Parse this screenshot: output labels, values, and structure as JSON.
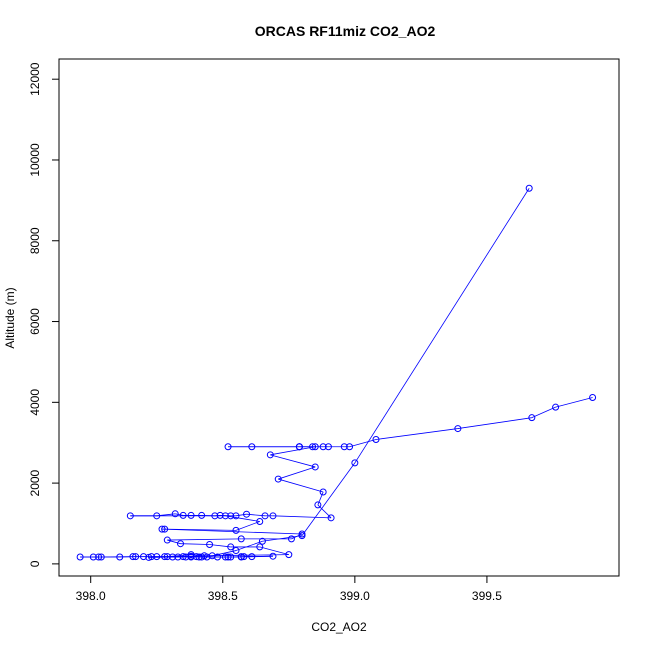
{
  "chart_data": {
    "type": "scatter",
    "title": "ORCAS RF11miz CO2_AO2",
    "xlabel": "CO2_AO2",
    "ylabel": "Altitude (m)",
    "xlim": [
      397.88,
      400.0
    ],
    "ylim": [
      -300,
      12500
    ],
    "xticks": [
      398.0,
      398.5,
      399.0,
      399.5
    ],
    "xtick_labels": [
      "398.0",
      "398.5",
      "399.0",
      "399.5"
    ],
    "yticks": [
      0,
      2000,
      4000,
      6000,
      8000,
      10000,
      12000
    ],
    "ytick_labels": [
      "0",
      "2000",
      "4000",
      "6000",
      "8000",
      "10000",
      "12000"
    ],
    "grid": false,
    "series": [
      {
        "color": "#0000ff",
        "marker": "open-circle",
        "line": true,
        "points": [
          [
            399.9,
            4120
          ],
          [
            399.76,
            3880
          ],
          [
            399.67,
            3620
          ],
          [
            399.39,
            3350
          ],
          [
            399.08,
            3080
          ],
          [
            398.98,
            2900
          ],
          [
            398.96,
            2900
          ],
          [
            398.9,
            2900
          ],
          [
            398.88,
            2900
          ],
          [
            398.84,
            2900
          ],
          [
            398.79,
            2900
          ],
          [
            398.79,
            2900
          ],
          [
            398.61,
            2900
          ],
          [
            398.52,
            2900
          ],
          [
            398.79,
            2900
          ],
          [
            398.85,
            2900
          ],
          [
            398.68,
            2700
          ],
          [
            398.85,
            2400
          ],
          [
            398.71,
            2100
          ],
          [
            398.88,
            1780
          ],
          [
            398.86,
            1460
          ],
          [
            398.91,
            1140
          ],
          [
            398.69,
            1190
          ],
          [
            398.66,
            1190
          ],
          [
            398.59,
            1230
          ],
          [
            398.55,
            1190
          ],
          [
            398.53,
            1190
          ],
          [
            398.49,
            1200
          ],
          [
            398.47,
            1190
          ],
          [
            398.42,
            1200
          ],
          [
            398.38,
            1200
          ],
          [
            398.35,
            1200
          ],
          [
            398.32,
            1240
          ],
          [
            398.25,
            1190
          ],
          [
            398.15,
            1190
          ],
          [
            398.51,
            1190
          ],
          [
            398.64,
            1050
          ],
          [
            398.55,
            830
          ],
          [
            398.28,
            860
          ],
          [
            398.27,
            860
          ],
          [
            398.8,
            740
          ],
          [
            398.76,
            620
          ],
          [
            398.57,
            620
          ],
          [
            398.29,
            590
          ],
          [
            398.34,
            500
          ],
          [
            398.45,
            480
          ],
          [
            398.53,
            420
          ],
          [
            398.64,
            420
          ],
          [
            398.75,
            230
          ],
          [
            398.43,
            200
          ],
          [
            398.38,
            230
          ],
          [
            398.29,
            180
          ],
          [
            398.25,
            180
          ],
          [
            398.23,
            180
          ],
          [
            398.22,
            160
          ],
          [
            398.33,
            170
          ],
          [
            398.35,
            180
          ],
          [
            398.4,
            180
          ],
          [
            398.41,
            170
          ],
          [
            398.42,
            170
          ],
          [
            398.48,
            170
          ],
          [
            398.51,
            170
          ],
          [
            398.53,
            170
          ],
          [
            398.57,
            180
          ],
          [
            398.61,
            180
          ],
          [
            398.58,
            180
          ],
          [
            398.69,
            190
          ],
          [
            398.57,
            170
          ],
          [
            398.52,
            170
          ],
          [
            398.44,
            170
          ],
          [
            398.38,
            170
          ],
          [
            398.36,
            170
          ],
          [
            398.31,
            170
          ],
          [
            398.17,
            180
          ],
          [
            398.16,
            180
          ],
          [
            398.04,
            170
          ],
          [
            398.03,
            170
          ],
          [
            398.01,
            170
          ],
          [
            397.96,
            170
          ],
          [
            398.11,
            170
          ],
          [
            398.2,
            180
          ],
          [
            398.28,
            180
          ],
          [
            398.38,
            190
          ],
          [
            398.46,
            200
          ],
          [
            398.55,
            330
          ],
          [
            398.65,
            560
          ],
          [
            398.8,
            700
          ],
          [
            399.0,
            2500
          ],
          [
            399.66,
            9300
          ]
        ]
      }
    ]
  }
}
